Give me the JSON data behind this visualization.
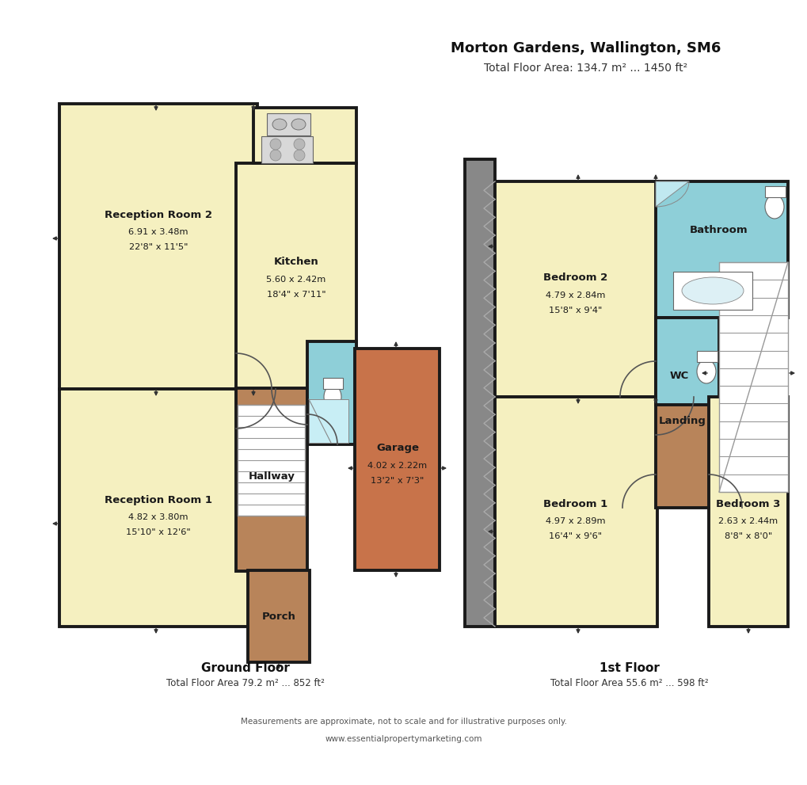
{
  "title": "Morton Gardens, Wallington, SM6",
  "total_area": "Total Floor Area: 134.7 m² ... 1450 ft²",
  "ground_floor_label": "Ground Floor",
  "ground_floor_area": "Total Floor Area 79.2 m² ... 852 ft²",
  "first_floor_label": "1st Floor",
  "first_floor_area": "Total Floor Area 55.6 m² ... 598 ft²",
  "disclaimer": "Measurements are approximate, not to scale and for illustrative purposes only.",
  "website": "www.essentialpropertymarketing.com",
  "bg": "#ffffff",
  "wall": "#1a1a1a",
  "yellow": "#f5f0c0",
  "blue": "#8ecfd8",
  "brown": "#b8845a",
  "orange": "#c8734a",
  "grey": "#888888",
  "white": "#ffffff",
  "stair_line": "#999999",
  "text_dark": "#1a1a1a",
  "text_mid": "#333333"
}
